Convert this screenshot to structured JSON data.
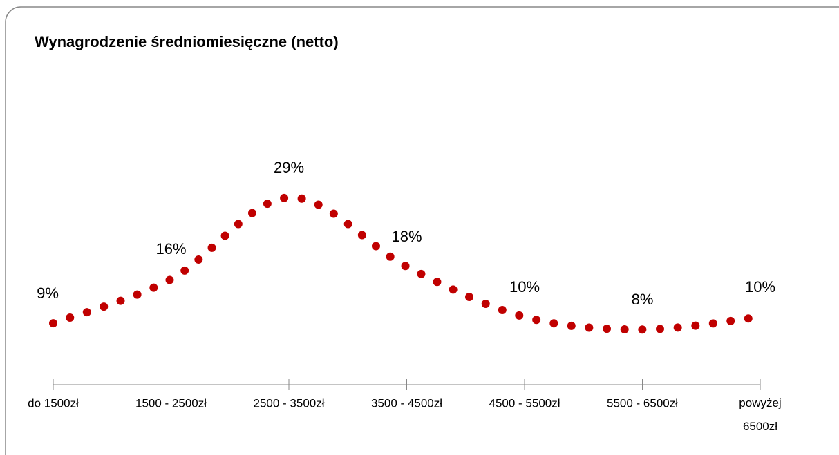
{
  "chart_data": {
    "type": "line",
    "title": "Wynagrodzenie średniomiesięczne (netto)",
    "categories": [
      "do 1500zł",
      "1500 - 2500zł",
      "2500 - 3500zł",
      "3500 - 4500zł",
      "4500 - 5500zł",
      "5500 - 6500zł",
      "powyżej 6500zł"
    ],
    "series": [
      {
        "name": "Wynagrodzenie",
        "color": "#c00000",
        "values": [
          9,
          16,
          29,
          18,
          10,
          8,
          10
        ],
        "value_labels": [
          "9%",
          "16%",
          "29%",
          "18%",
          "10%",
          "8%",
          "10%"
        ]
      }
    ]
  }
}
